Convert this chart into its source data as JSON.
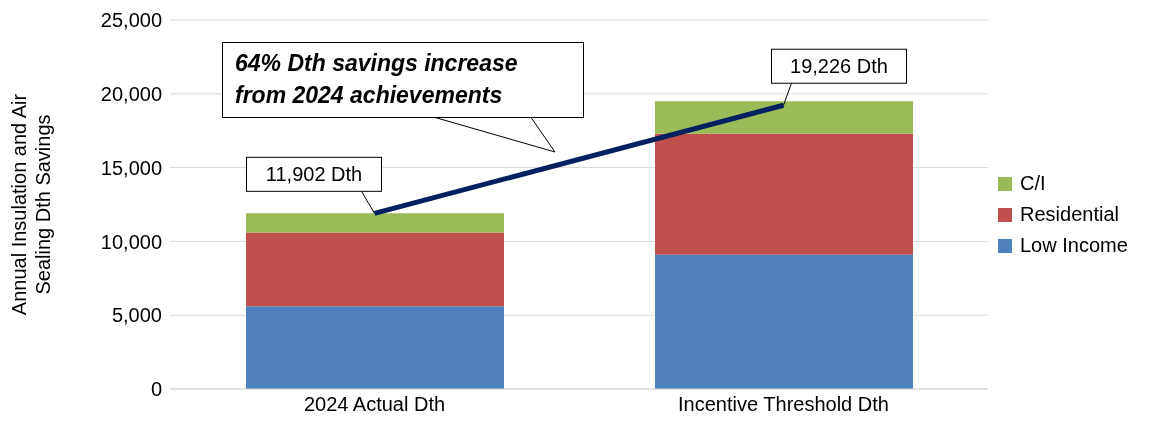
{
  "chart_data": {
    "type": "bar",
    "ylabel": "Annual Insulation and Air Sealing Dth Savings",
    "categories": [
      "2024 Actual Dth",
      "Incentive Threshold Dth"
    ],
    "stacked": true,
    "series": [
      {
        "name": "Low Income",
        "color": "#4f81bd",
        "values": [
          5600,
          9100
        ]
      },
      {
        "name": "Residential",
        "color": "#c0504d",
        "values": [
          5000,
          8200
        ]
      },
      {
        "name": "C/I",
        "color": "#9bbb59",
        "values": [
          1300,
          2200
        ]
      },
      {
        "type": "line",
        "color": "#002060",
        "values": [
          11902,
          19226
        ]
      }
    ],
    "ylim": [
      0,
      25000
    ],
    "yticks": [
      0,
      {
        "value": 5000,
        "label": "5,000"
      },
      {
        "value": 10000,
        "label": "10,000"
      },
      {
        "value": 15000,
        "label": "15,000"
      },
      {
        "value": 20000,
        "label": "20,000"
      },
      {
        "value": 25000,
        "label": "25,000"
      }
    ],
    "grid": "y",
    "legend": "right",
    "marker": "none",
    "annotations": [
      "64% Dth savings increase from 2024 achievements",
      {
        "text": "11,902 Dth",
        "x": "2024 Actual Dth",
        "y": 11902
      },
      {
        "text": "19,226 Dth",
        "x": "Incentive Threshold Dth",
        "y": 19226
      }
    ]
  }
}
